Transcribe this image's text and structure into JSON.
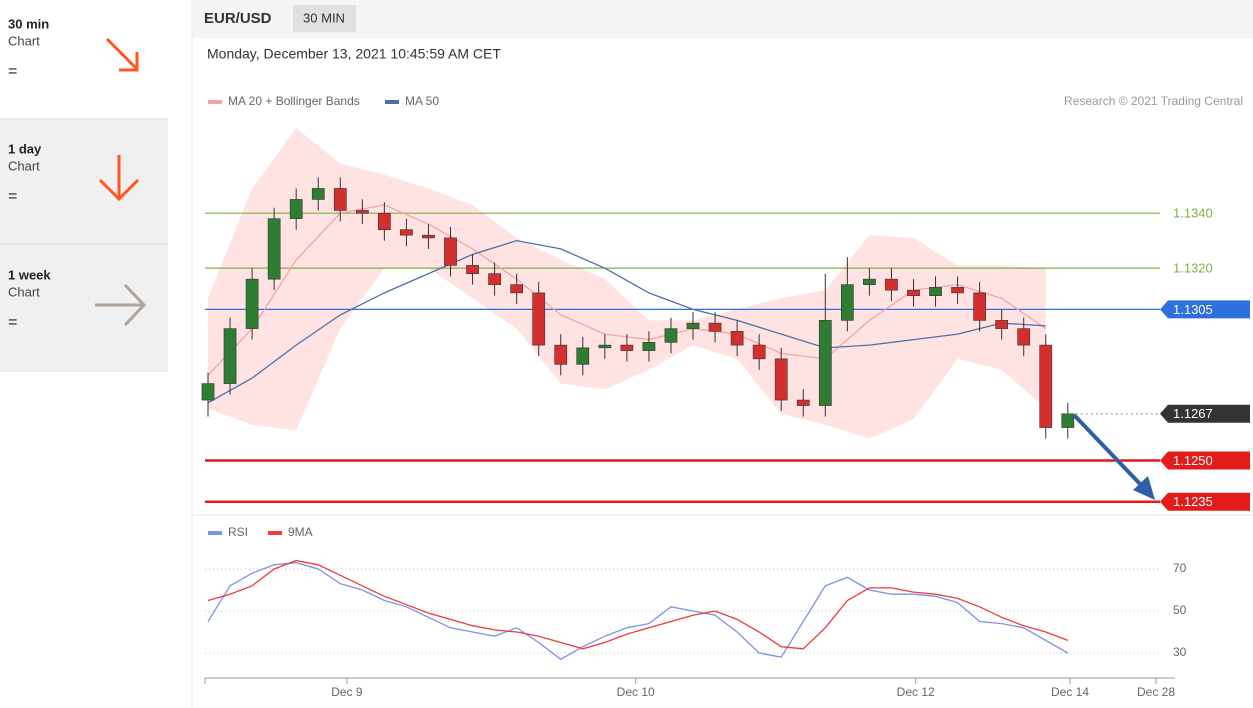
{
  "sidebar": {
    "items": [
      {
        "title": "30 min",
        "subtitle": "Chart",
        "symbol": "="
      },
      {
        "title": "1 day",
        "subtitle": "Chart",
        "symbol": "="
      },
      {
        "title": "1 week",
        "subtitle": "Chart",
        "symbol": "="
      }
    ]
  },
  "header": {
    "symbol": "EUR/USD",
    "interval": "30 MIN",
    "timestamp": "Monday, December 13, 2021 10:45:59 AM CET",
    "copyright": "Research © 2021 Trading Central"
  },
  "chart_data": [
    {
      "type": "candlestick",
      "x": [
        0,
        1,
        2,
        3,
        4,
        5,
        6,
        7,
        8,
        9,
        10,
        11,
        12,
        13,
        14,
        15,
        16,
        17,
        18,
        19,
        20,
        21,
        22,
        23,
        24,
        25,
        26,
        27,
        28,
        29,
        30,
        31,
        32,
        33,
        34,
        35,
        36,
        37,
        38,
        39
      ],
      "open": [
        1.1272,
        1.1278,
        1.1298,
        1.1316,
        1.1338,
        1.1345,
        1.1349,
        1.1341,
        1.134,
        1.1334,
        1.1332,
        1.1331,
        1.1321,
        1.1318,
        1.1314,
        1.1311,
        1.1292,
        1.1285,
        1.1291,
        1.1292,
        1.129,
        1.1293,
        1.1298,
        1.13,
        1.1297,
        1.1292,
        1.1287,
        1.1272,
        1.127,
        1.1301,
        1.1314,
        1.1316,
        1.1312,
        1.131,
        1.1313,
        1.1311,
        1.1301,
        1.1298,
        1.1292,
        1.1262
      ],
      "high": [
        1.1282,
        1.1302,
        1.132,
        1.1342,
        1.1349,
        1.1353,
        1.1353,
        1.1345,
        1.1344,
        1.1338,
        1.1336,
        1.1335,
        1.1325,
        1.1322,
        1.1318,
        1.1315,
        1.1296,
        1.1295,
        1.1296,
        1.1296,
        1.1297,
        1.1302,
        1.1304,
        1.1304,
        1.1301,
        1.1296,
        1.1291,
        1.1276,
        1.1318,
        1.1324,
        1.132,
        1.132,
        1.1316,
        1.1317,
        1.1317,
        1.1315,
        1.1305,
        1.1302,
        1.1296,
        1.1271
      ],
      "low": [
        1.1266,
        1.1274,
        1.1294,
        1.1312,
        1.1334,
        1.1341,
        1.1337,
        1.1336,
        1.133,
        1.1328,
        1.1327,
        1.1317,
        1.1314,
        1.131,
        1.1307,
        1.1288,
        1.1281,
        1.1281,
        1.1287,
        1.1286,
        1.1286,
        1.1289,
        1.1294,
        1.1293,
        1.1288,
        1.1283,
        1.1268,
        1.1266,
        1.1266,
        1.1297,
        1.131,
        1.1308,
        1.1306,
        1.1306,
        1.1307,
        1.1297,
        1.1294,
        1.1288,
        1.1258,
        1.1258
      ],
      "close": [
        1.1278,
        1.1298,
        1.1316,
        1.1338,
        1.1345,
        1.1349,
        1.1341,
        1.134,
        1.1334,
        1.1332,
        1.1331,
        1.1321,
        1.1318,
        1.1314,
        1.1311,
        1.1292,
        1.1285,
        1.1291,
        1.1292,
        1.129,
        1.1293,
        1.1298,
        1.13,
        1.1297,
        1.1292,
        1.1287,
        1.1272,
        1.127,
        1.1301,
        1.1314,
        1.1316,
        1.1312,
        1.131,
        1.1313,
        1.1311,
        1.1301,
        1.1298,
        1.1292,
        1.1262,
        1.1267
      ],
      "up_color": "#2e7d32",
      "down_color": "#d32f2f",
      "series": [
        {
          "name": "MA 20 + Bollinger Bands",
          "color": "#f4a3a3",
          "band_color": "#ffdede",
          "x": [
            0,
            2,
            4,
            6,
            8,
            10,
            12,
            14,
            16,
            18,
            20,
            22,
            24,
            26,
            28,
            30,
            32,
            34,
            36,
            38
          ],
          "values": [
            1.1281,
            1.1298,
            1.1323,
            1.134,
            1.1343,
            1.1336,
            1.1327,
            1.1316,
            1.1303,
            1.1296,
            1.1294,
            1.1298,
            1.1296,
            1.1289,
            1.1287,
            1.1301,
            1.1312,
            1.1314,
            1.1309,
            1.1298
          ],
          "upper": [
            1.1309,
            1.1349,
            1.1371,
            1.1358,
            1.1354,
            1.1349,
            1.1343,
            1.1331,
            1.1323,
            1.1316,
            1.1301,
            1.1301,
            1.1305,
            1.1309,
            1.1312,
            1.1332,
            1.1331,
            1.1321,
            1.1321,
            1.132
          ],
          "lower": [
            1.1269,
            1.1263,
            1.1261,
            1.1298,
            1.132,
            1.132,
            1.1309,
            1.1298,
            1.1278,
            1.1276,
            1.1283,
            1.1292,
            1.1287,
            1.1267,
            1.1263,
            1.1258,
            1.1265,
            1.1287,
            1.1283,
            1.1269
          ]
        },
        {
          "name": "MA 50",
          "color": "#4e6fae",
          "x": [
            0,
            2,
            4,
            6,
            8,
            10,
            12,
            14,
            16,
            18,
            20,
            22,
            24,
            26,
            28,
            30,
            32,
            34,
            36,
            38
          ],
          "values": [
            1.1271,
            1.128,
            1.1292,
            1.1303,
            1.1311,
            1.1318,
            1.1325,
            1.133,
            1.1327,
            1.132,
            1.1311,
            1.1305,
            1.1301,
            1.1296,
            1.1291,
            1.1292,
            1.1294,
            1.1296,
            1.13,
            1.1299
          ]
        }
      ],
      "levels": [
        {
          "value": 1.134,
          "label": "1.1340",
          "color": "#7cb342",
          "tag": false,
          "line": "solid"
        },
        {
          "value": 1.132,
          "label": "1.1320",
          "color": "#7cb342",
          "tag": false,
          "line": "solid"
        },
        {
          "value": 1.1305,
          "label": "1.1305",
          "color": "#2f6fe0",
          "tag": true,
          "line": "solid"
        },
        {
          "value": 1.1267,
          "label": "1.1267",
          "color": "#333333",
          "tag": true,
          "line": "dotted"
        },
        {
          "value": 1.125,
          "label": "1.1250",
          "color": "#e31b1b",
          "tag": true,
          "line": "solid"
        },
        {
          "value": 1.1235,
          "label": "1.1235",
          "color": "#e31b1b",
          "tag": true,
          "line": "solid"
        }
      ],
      "xlim": [
        0,
        43
      ],
      "ylim": [
        1.1232,
        1.1375
      ]
    },
    {
      "type": "line",
      "x": [
        0,
        1,
        2,
        3,
        4,
        5,
        6,
        7,
        8,
        9,
        10,
        11,
        12,
        13,
        14,
        15,
        16,
        17,
        18,
        19,
        20,
        21,
        22,
        23,
        24,
        25,
        26,
        27,
        28,
        29,
        30,
        31,
        32,
        33,
        34,
        35,
        36,
        37,
        38,
        39
      ],
      "series": [
        {
          "name": "RSI",
          "color": "#7b93e0",
          "values": [
            45,
            62,
            68,
            72,
            73,
            70,
            63,
            60,
            55,
            52,
            47,
            42,
            40,
            38,
            42,
            35,
            27,
            33,
            38,
            42,
            44,
            52,
            50,
            48,
            40,
            30,
            28,
            45,
            62,
            66,
            60,
            58,
            58,
            57,
            54,
            45,
            44,
            42,
            36,
            30
          ]
        },
        {
          "name": "9MA",
          "color": "#ee3b3b",
          "values": [
            55,
            58,
            62,
            70,
            74,
            72,
            67,
            62,
            57,
            53,
            49,
            46,
            43,
            41,
            40,
            38,
            35,
            32,
            35,
            39,
            42,
            45,
            48,
            50,
            46,
            40,
            33,
            32,
            42,
            55,
            61,
            61,
            59,
            58,
            56,
            52,
            47,
            43,
            40,
            36
          ]
        }
      ],
      "xlim": [
        0,
        43
      ],
      "ylim": [
        20,
        84
      ],
      "yticks": [
        30,
        50,
        70
      ],
      "grid": true,
      "xticks": [
        {
          "value": 6.3,
          "label": "Dec 9"
        },
        {
          "value": 19.4,
          "label": "Dec 10"
        },
        {
          "value": 32.1,
          "label": "Dec 12"
        },
        {
          "value": 39.1,
          "label": "Dec 14"
        },
        {
          "value": 43,
          "label": "Dec 28"
        }
      ]
    }
  ]
}
